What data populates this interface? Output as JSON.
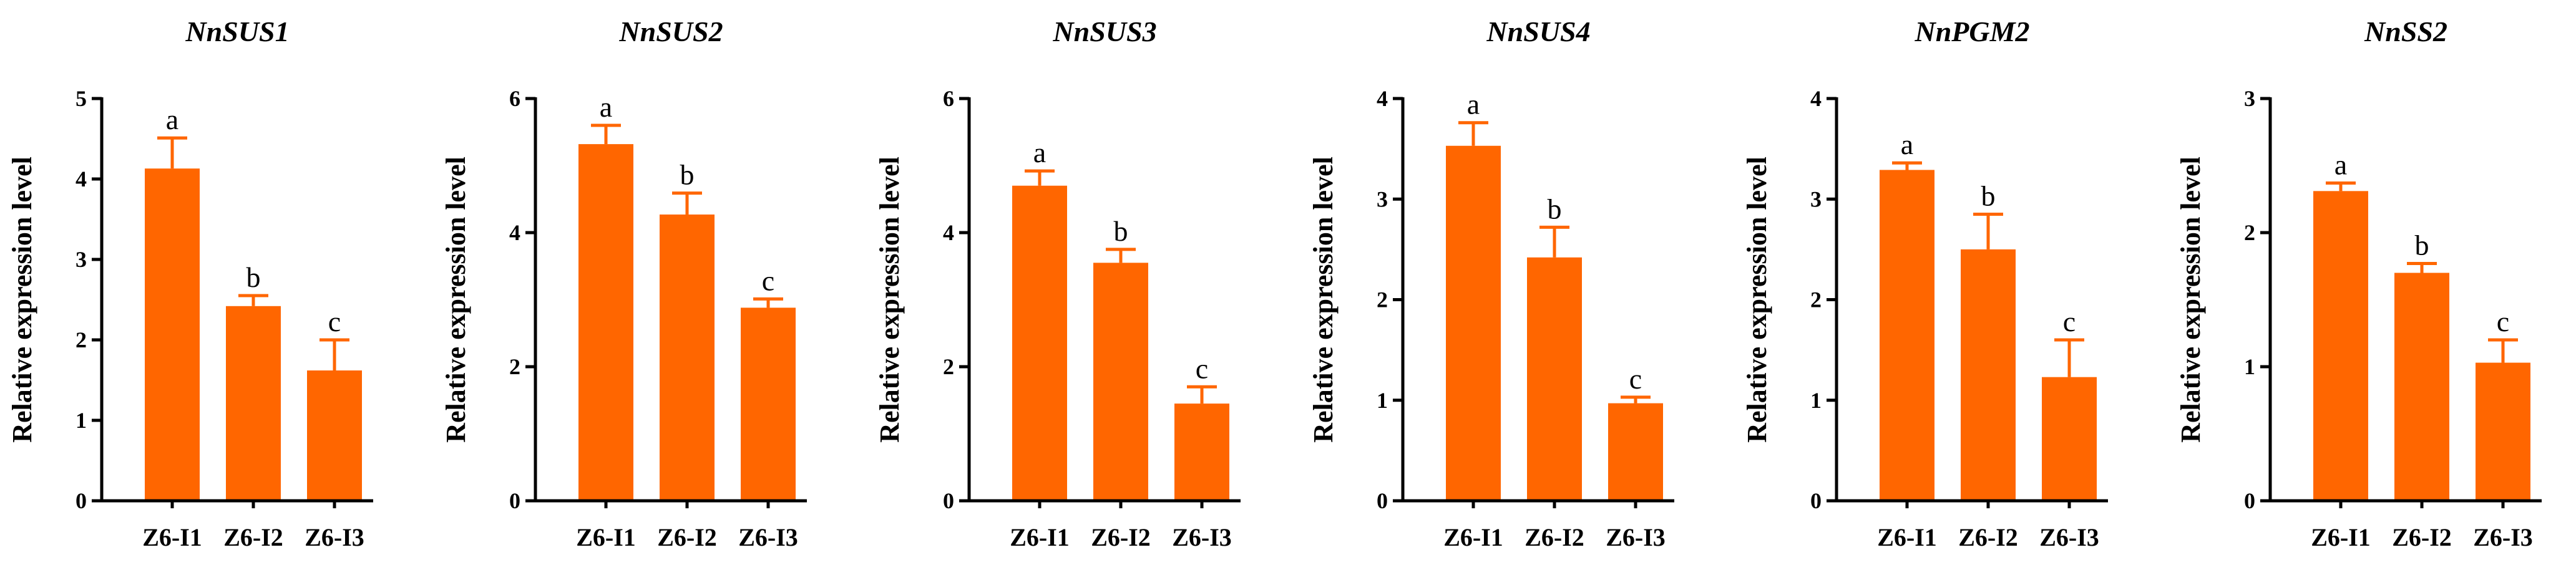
{
  "colors": {
    "bar": "#ff6600",
    "axis": "#000000"
  },
  "y_axis_label": "Relative expression level",
  "chart_data": [
    {
      "type": "bar",
      "title": "NnSUS1",
      "ylabel": "Relative expression level",
      "categories": [
        "Z6-I1",
        "Z6-I2",
        "Z6-I3"
      ],
      "values": [
        4.13,
        2.42,
        1.62
      ],
      "errors": [
        0.38,
        0.13,
        0.38
      ],
      "significance": [
        "a",
        "b",
        "c"
      ],
      "ylim": [
        0,
        5
      ],
      "yticks": [
        0,
        1,
        2,
        3,
        4,
        5
      ]
    },
    {
      "type": "bar",
      "title": "NnSUS2",
      "ylabel": "Relative expression level",
      "categories": [
        "Z6-I1",
        "Z6-I2",
        "Z6-I3"
      ],
      "values": [
        5.32,
        4.27,
        2.88
      ],
      "errors": [
        0.28,
        0.32,
        0.13
      ],
      "significance": [
        "a",
        "b",
        "c"
      ],
      "ylim": [
        0,
        6
      ],
      "yticks": [
        0,
        2,
        4,
        6
      ]
    },
    {
      "type": "bar",
      "title": "NnSUS3",
      "ylabel": "Relative expression level",
      "categories": [
        "Z6-I1",
        "Z6-I2",
        "Z6-I3"
      ],
      "values": [
        4.7,
        3.55,
        1.45
      ],
      "errors": [
        0.22,
        0.2,
        0.25
      ],
      "significance": [
        "a",
        "b",
        "c"
      ],
      "ylim": [
        0,
        6
      ],
      "yticks": [
        0,
        2,
        4,
        6
      ]
    },
    {
      "type": "bar",
      "title": "NnSUS4",
      "ylabel": "Relative expression level",
      "categories": [
        "Z6-I1",
        "Z6-I2",
        "Z6-I3"
      ],
      "values": [
        3.53,
        2.42,
        0.97
      ],
      "errors": [
        0.23,
        0.3,
        0.06
      ],
      "significance": [
        "a",
        "b",
        "c"
      ],
      "ylim": [
        0,
        4
      ],
      "yticks": [
        0,
        1,
        2,
        3,
        4
      ]
    },
    {
      "type": "bar",
      "title": "NnPGM2",
      "ylabel": "Relative expression level",
      "categories": [
        "Z6-I1",
        "Z6-I2",
        "Z6-I3"
      ],
      "values": [
        3.29,
        2.5,
        1.23
      ],
      "errors": [
        0.07,
        0.35,
        0.37
      ],
      "significance": [
        "a",
        "b",
        "c"
      ],
      "ylim": [
        0,
        4
      ],
      "yticks": [
        0,
        1,
        2,
        3,
        4
      ]
    },
    {
      "type": "bar",
      "title": "NnSS2",
      "ylabel": "Relative expression level",
      "categories": [
        "Z6-I1",
        "Z6-I2",
        "Z6-I3"
      ],
      "values": [
        2.31,
        1.7,
        1.03
      ],
      "errors": [
        0.06,
        0.07,
        0.17
      ],
      "significance": [
        "a",
        "b",
        "c"
      ],
      "ylim": [
        0,
        3
      ],
      "yticks": [
        0,
        1,
        2,
        3
      ]
    }
  ]
}
